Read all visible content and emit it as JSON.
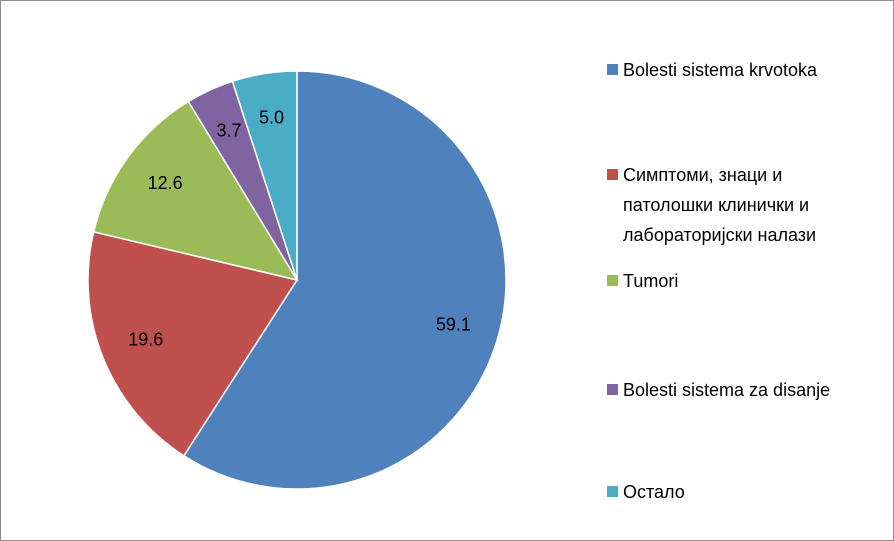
{
  "chart_data": {
    "type": "pie",
    "categories": [
      "Bolesti sistema krvotoka",
      "Симптоми, знаци и патолошки клинички и лабораторијски налази",
      "Tumori",
      "Bolesti sistema za disanje",
      "Остало"
    ],
    "values": [
      59.1,
      19.6,
      12.6,
      3.7,
      5.0
    ],
    "value_labels": [
      "59.1",
      "19.6",
      "12.6",
      "3.7",
      "5.0"
    ],
    "colors": [
      "#4f81bd",
      "#c0504d",
      "#9bbb59",
      "#8064a2",
      "#4bacc6"
    ],
    "legend": "right"
  }
}
